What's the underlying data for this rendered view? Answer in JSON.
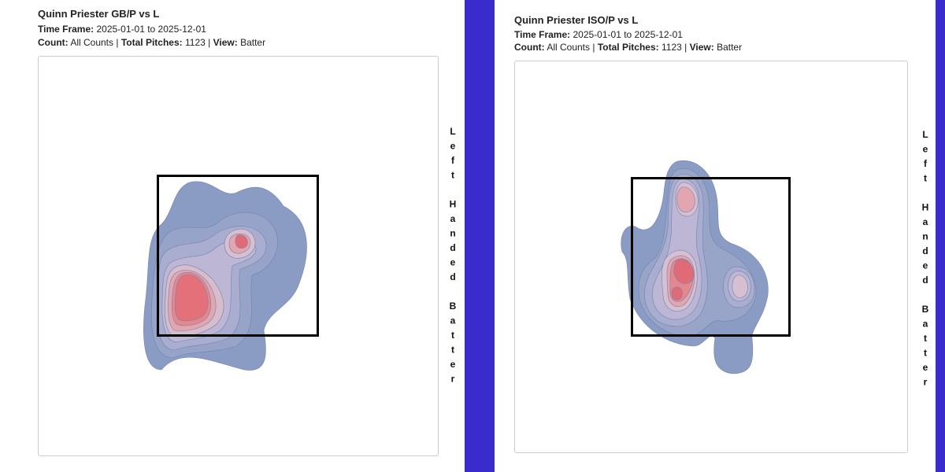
{
  "panels": [
    {
      "title": "Quinn Priester GB/P vs L",
      "time_frame_label": "Time Frame:",
      "time_frame": "2025-01-01 to 2025-12-01",
      "count_label": "Count:",
      "count": "All Counts",
      "separator": "|",
      "total_label": "Total Pitches:",
      "total": "1123",
      "view_label": "View:",
      "view": "Batter",
      "side_label": "Left Handed Batter"
    },
    {
      "title": "Quinn Priester ISO/P vs L",
      "time_frame_label": "Time Frame:",
      "time_frame": "2025-01-01 to 2025-12-01",
      "count_label": "Count:",
      "count": "All Counts",
      "separator": "|",
      "total_label": "Total Pitches:",
      "total": "1123",
      "view_label": "View:",
      "view": "Batter",
      "side_label": "Left Handed Batter"
    }
  ]
}
